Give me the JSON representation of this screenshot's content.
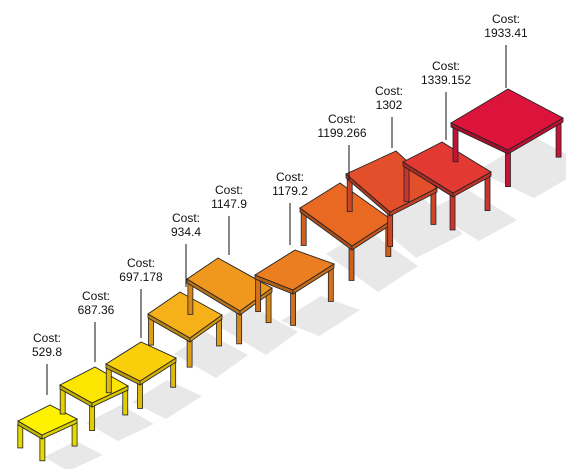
{
  "tables": [
    {
      "cost_prefix": "Cost:",
      "cost": "529.8",
      "color": "#FFF200"
    },
    {
      "cost_prefix": "Cost:",
      "cost": "687.36",
      "color": "#FCE500"
    },
    {
      "cost_prefix": "Cost:",
      "cost": "697.178",
      "color": "#F9CF0C"
    },
    {
      "cost_prefix": "Cost:",
      "cost": "934.4",
      "color": "#F5B01A"
    },
    {
      "cost_prefix": "Cost:",
      "cost": "1147.9",
      "color": "#F0971E"
    },
    {
      "cost_prefix": "Cost:",
      "cost": "1179.2",
      "color": "#EB7E20"
    },
    {
      "cost_prefix": "Cost:",
      "cost": "1199.266",
      "color": "#E96822"
    },
    {
      "cost_prefix": "Cost:",
      "cost": "1302",
      "color": "#E44F2B"
    },
    {
      "cost_prefix": "Cost:",
      "cost": "1339.152",
      "color": "#E23A33"
    },
    {
      "cost_prefix": "Cost:",
      "cost": "1933.41",
      "color": "#DC143C"
    }
  ]
}
